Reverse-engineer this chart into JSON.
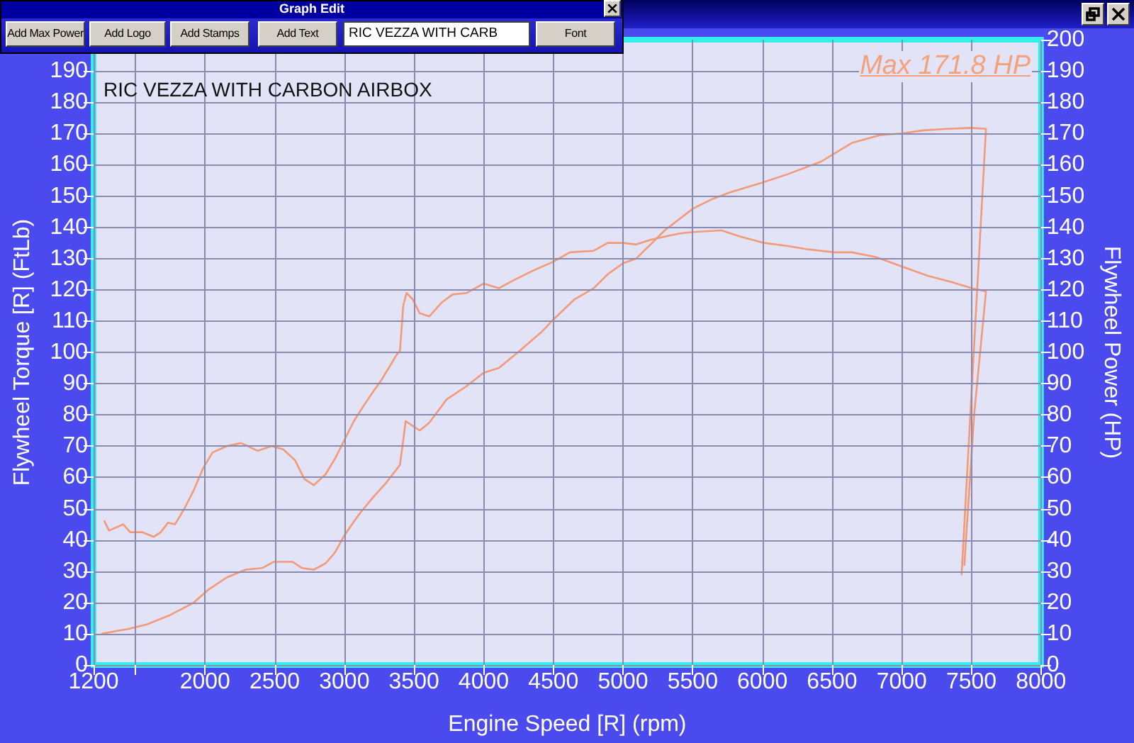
{
  "chart_data": {
    "type": "line",
    "title": "RIC VEZZA WITH CARBON AIRBOX",
    "xlabel": "Engine Speed [R] (rpm)",
    "ylabel": "Flywheel Torque [R] (FtLb)",
    "y2label": "Flywheel Power (HP)",
    "annotations": [
      "Max 171.8 HP",
      "Graph Edit",
      "Add Max Power",
      "Add Logo",
      "Add Stamps",
      "Add Text",
      "RIC VEZZA WITH CARB",
      "Font"
    ],
    "series": [
      {
        "color": "#f29a76",
        "x": [
          1278,
          1311,
          1413,
          1463,
          1548,
          1632,
          1683,
          1734,
          1784,
          1852,
          1920,
          1987,
          2055,
          2156,
          2257,
          2308,
          2376,
          2477,
          2561,
          2646,
          2713,
          2781,
          2865,
          2933,
          3001,
          3068,
          3169,
          3271,
          3372,
          3399,
          3423,
          3446,
          3490,
          3541,
          3609,
          3700,
          3777,
          3879,
          4000,
          4109,
          4211,
          4347,
          4500,
          4619,
          4789,
          4891,
          5000,
          5095,
          5197,
          5299,
          5401,
          5503,
          5707,
          5843,
          6013,
          6183,
          6319,
          6516,
          6643,
          6813,
          7000,
          7187,
          7357,
          7503,
          7605,
          7520,
          7450
        ],
        "values": [
          46,
          43,
          45,
          42.5,
          42.5,
          41,
          42.5,
          45.5,
          45,
          50,
          56,
          63,
          68,
          70,
          71,
          70,
          68.5,
          70,
          69,
          65.5,
          59.5,
          57.5,
          61,
          66,
          72,
          78,
          85,
          91.5,
          99,
          100.5,
          115,
          119,
          117,
          112.5,
          111.5,
          116,
          118.5,
          119,
          122,
          120.5,
          123,
          126,
          129,
          132,
          132.5,
          135,
          135,
          134.5,
          136,
          137,
          138,
          138.5,
          139,
          137,
          135,
          134,
          133,
          132,
          132,
          130.5,
          127.5,
          124.5,
          122.5,
          120.5,
          119.5,
          80,
          32
        ]
      },
      {
        "color": "#f29a76",
        "axis": "y2",
        "x": [
          1261,
          1379,
          1447,
          1582,
          1751,
          1920,
          2021,
          2156,
          2291,
          2409,
          2494,
          2629,
          2697,
          2781,
          2865,
          2933,
          3001,
          3102,
          3203,
          3304,
          3399,
          3423,
          3440,
          3473,
          3541,
          3609,
          3735,
          3871,
          4000,
          4109,
          4245,
          4415,
          4500,
          4653,
          4789,
          4891,
          5000,
          5095,
          5197,
          5299,
          5401,
          5503,
          5639,
          5758,
          5979,
          6183,
          6421,
          6643,
          6847,
          7000,
          7153,
          7323,
          7500,
          7605,
          7430
        ],
        "values": [
          10,
          11,
          11.5,
          13,
          16,
          20,
          24,
          28,
          30.5,
          31,
          33,
          33,
          31,
          30.5,
          32.5,
          36,
          41.5,
          48,
          53.5,
          58.5,
          64,
          72,
          78,
          77,
          75,
          77.5,
          85,
          89,
          93.5,
          95,
          100,
          106.5,
          110.5,
          117,
          120.5,
          125,
          128.5,
          130,
          134.5,
          139,
          142.5,
          146,
          149,
          151,
          154,
          157,
          161,
          167,
          169.5,
          170,
          171,
          171.5,
          171.8,
          171.5,
          29
        ]
      }
    ],
    "xlim": [
      1200,
      8000
    ],
    "xticks": [
      1200,
      {
        "value": 1500,
        "label": null
      },
      2000,
      2500,
      3000,
      3500,
      4000,
      4500,
      5000,
      5500,
      6000,
      6500,
      7000,
      7500,
      8000
    ],
    "ylim": [
      0,
      200
    ],
    "yticks": [
      0,
      10,
      20,
      30,
      40,
      50,
      60,
      70,
      80,
      90,
      100,
      110,
      120,
      130,
      140,
      150,
      160,
      170,
      180,
      190
    ],
    "y2lim": [
      0,
      200
    ],
    "y2ticks": [
      0,
      10,
      20,
      30,
      40,
      50,
      60,
      70,
      80,
      90,
      100,
      110,
      120,
      130,
      140,
      150,
      160,
      170,
      180,
      190,
      200
    ],
    "grid": true,
    "marker": "none",
    "line_style": "solid"
  }
}
